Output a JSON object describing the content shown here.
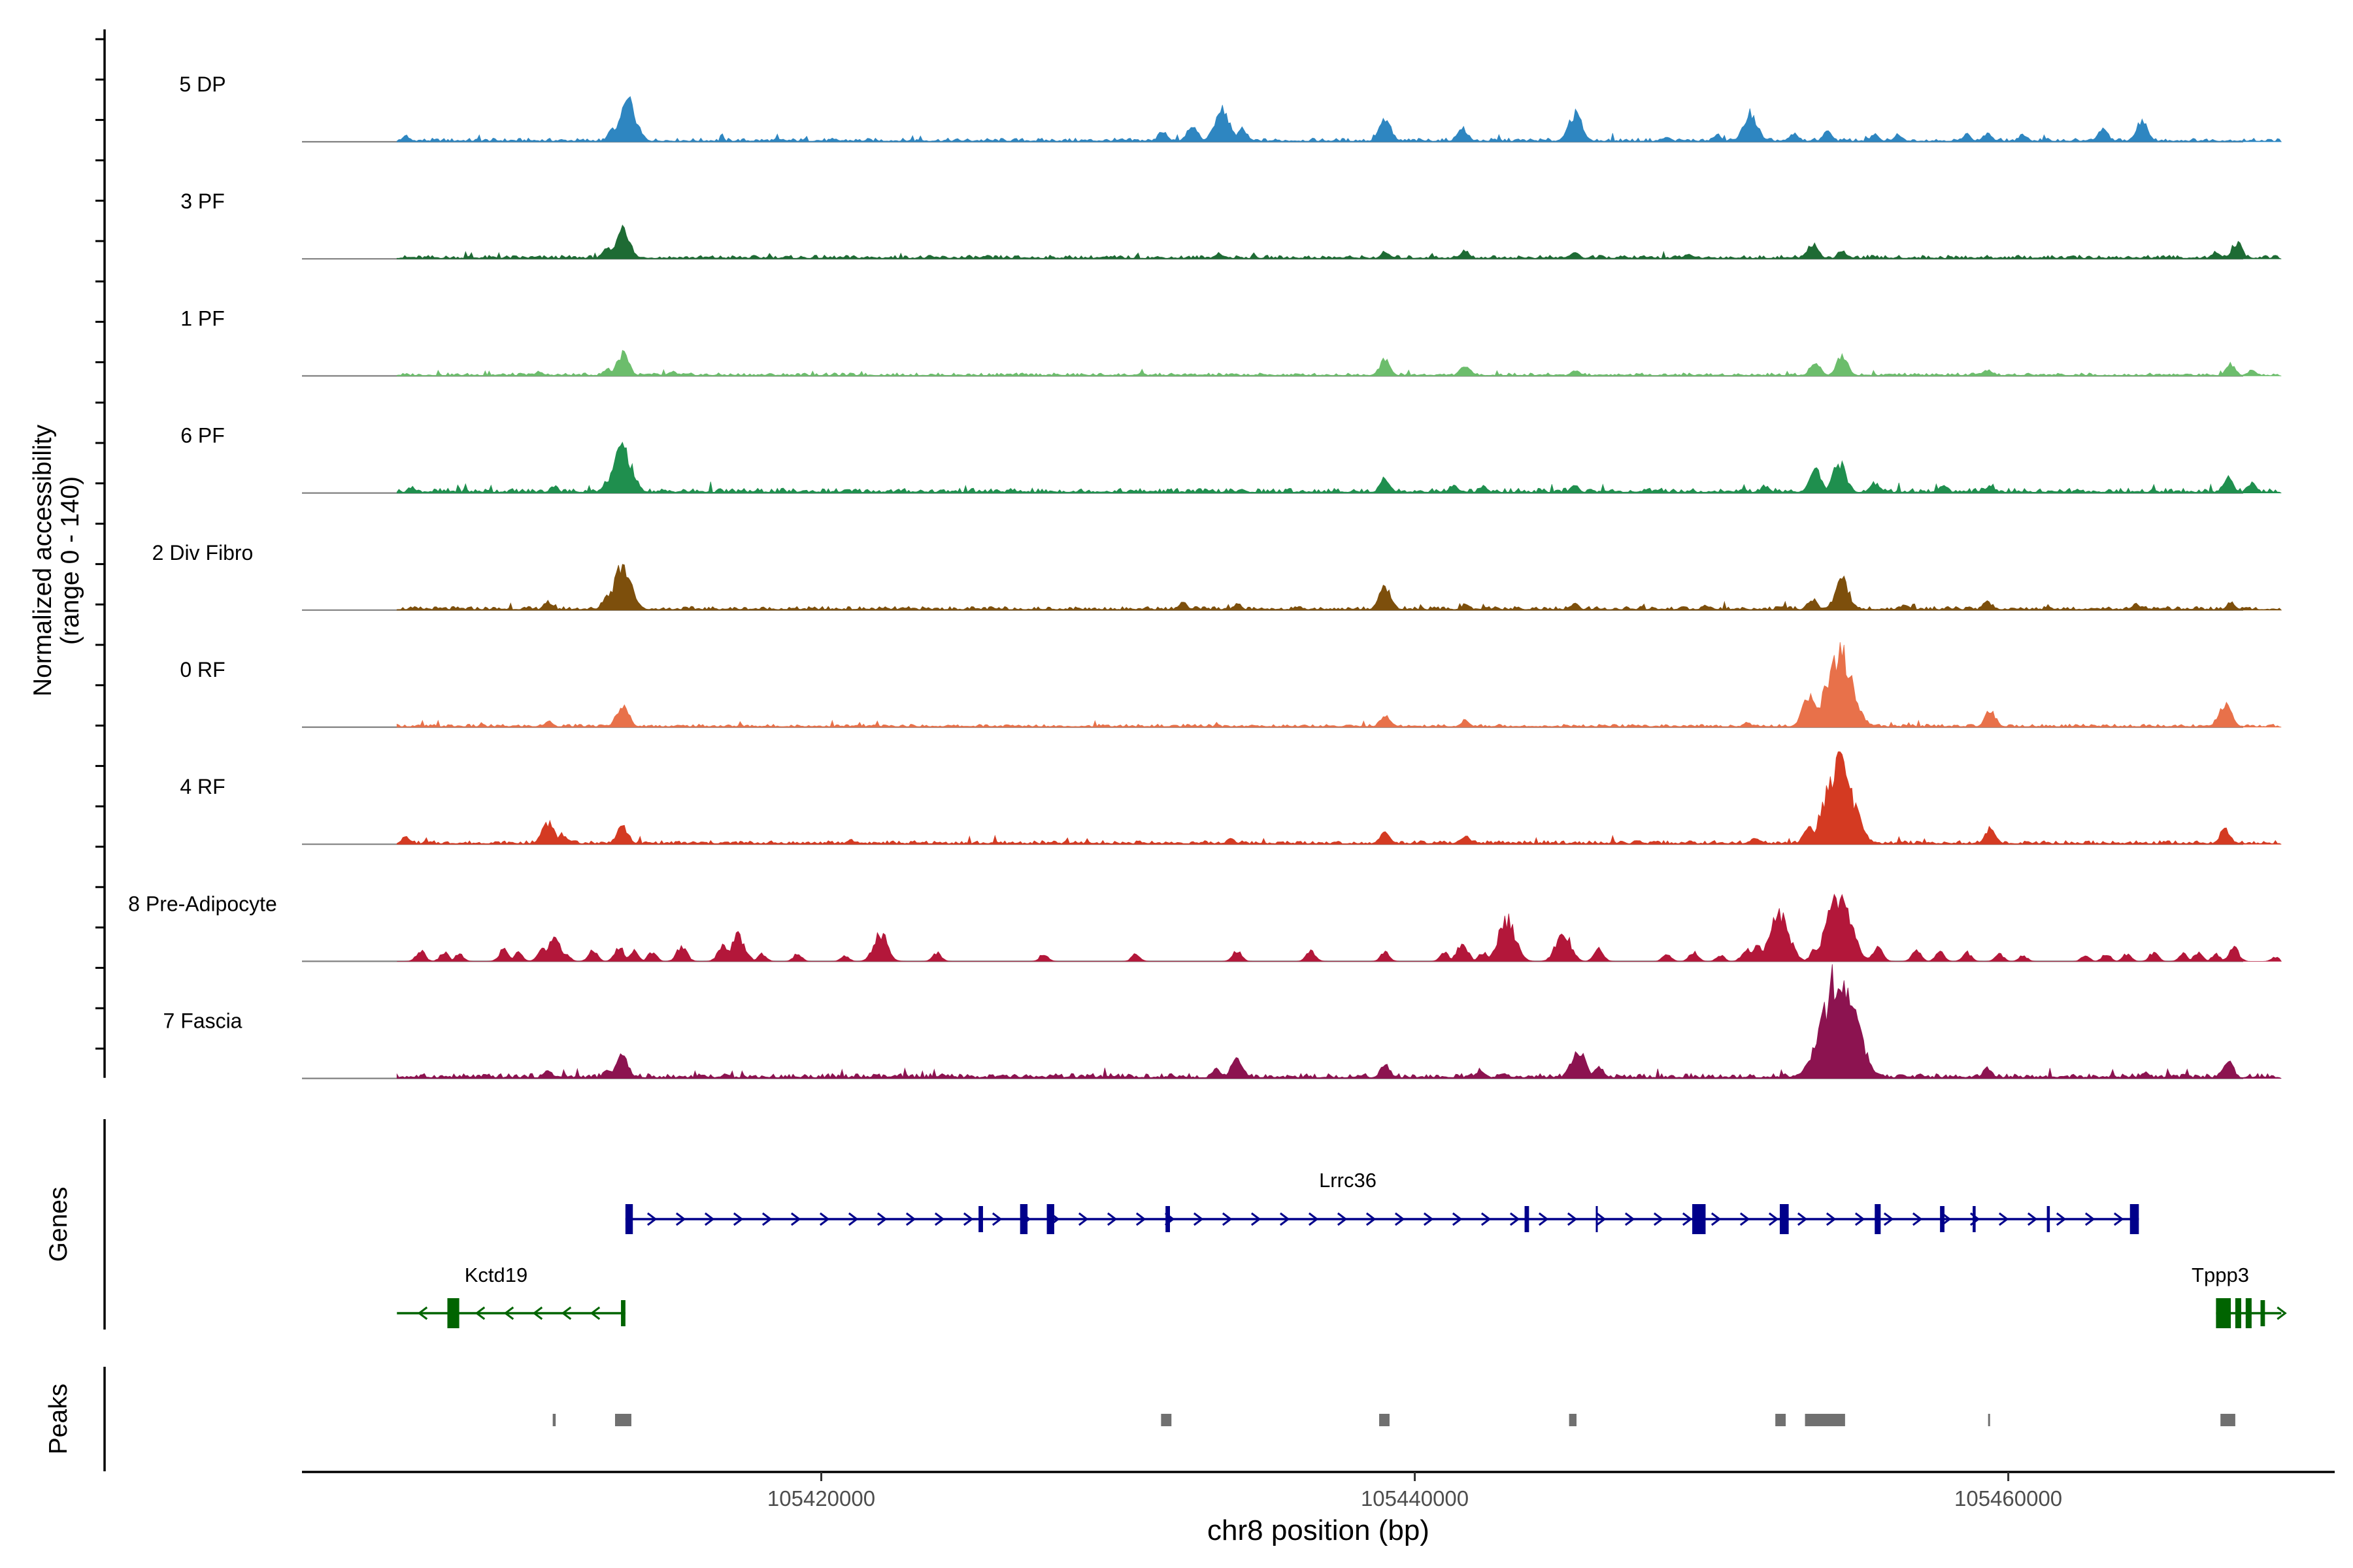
{
  "chart_data": {
    "type": "area",
    "title": "",
    "ylabel_line1": "Normalized accessibility",
    "ylabel_line2": "(range 0 - 140)",
    "ylim": [
      0,
      140
    ],
    "xlabel": "chr8 position (bp)",
    "xlim": [
      105402500,
      105471000
    ],
    "xticks": [
      105420000,
      105440000,
      105460000
    ],
    "xtick_labels": [
      "105420000",
      "105440000",
      "105460000"
    ],
    "region_start": 105405700,
    "region_end": 105469200,
    "panel_titles": {
      "genes": "Genes",
      "peaks": "Peaks"
    },
    "tracks": [
      {
        "name": "5 DP",
        "color": "#2e86c1",
        "baseline": 3.0,
        "peaks": [
          [
            105406000,
            8
          ],
          [
            105413500,
            52
          ],
          [
            105413000,
            18
          ],
          [
            105431500,
            14
          ],
          [
            105432500,
            22
          ],
          [
            105433500,
            45
          ],
          [
            105434200,
            18
          ],
          [
            105439000,
            30
          ],
          [
            105441600,
            20
          ],
          [
            105445400,
            38
          ],
          [
            105448500,
            8
          ],
          [
            105450200,
            10
          ],
          [
            105451300,
            40
          ],
          [
            105452800,
            12
          ],
          [
            105453900,
            14
          ],
          [
            105455500,
            10
          ],
          [
            105456300,
            10
          ],
          [
            105458600,
            10
          ],
          [
            105459300,
            12
          ],
          [
            105460500,
            10
          ],
          [
            105463200,
            18
          ],
          [
            105464500,
            28
          ]
        ]
      },
      {
        "name": "3 PF",
        "color": "#1e6b34",
        "baseline": 3.0,
        "peaks": [
          [
            105413300,
            40
          ],
          [
            105412800,
            15
          ],
          [
            105433400,
            8
          ],
          [
            105439000,
            10
          ],
          [
            105441700,
            12
          ],
          [
            105445400,
            10
          ],
          [
            105449200,
            6
          ],
          [
            105453400,
            22
          ],
          [
            105454400,
            12
          ],
          [
            105467700,
            22
          ],
          [
            105467000,
            10
          ]
        ]
      },
      {
        "name": "1 PF",
        "color": "#6cbd6c",
        "baseline": 2.5,
        "peaks": [
          [
            105413300,
            30
          ],
          [
            105412800,
            10
          ],
          [
            105415000,
            6
          ],
          [
            105410500,
            6
          ],
          [
            105439000,
            22
          ],
          [
            105441700,
            16
          ],
          [
            105445400,
            8
          ],
          [
            105453500,
            20
          ],
          [
            105454400,
            26
          ],
          [
            105459300,
            8
          ],
          [
            105467500,
            16
          ],
          [
            105468200,
            8
          ]
        ]
      },
      {
        "name": "6 PF",
        "color": "#1f8f4e",
        "baseline": 4.0,
        "peaks": [
          [
            105413300,
            62
          ],
          [
            105412800,
            18
          ],
          [
            105411000,
            10
          ],
          [
            105406200,
            8
          ],
          [
            105439000,
            20
          ],
          [
            105441300,
            12
          ],
          [
            105442300,
            10
          ],
          [
            105445400,
            10
          ],
          [
            105451800,
            10
          ],
          [
            105453500,
            30
          ],
          [
            105454300,
            40
          ],
          [
            105455500,
            14
          ],
          [
            105457800,
            12
          ],
          [
            105459400,
            10
          ],
          [
            105467400,
            20
          ],
          [
            105468200,
            14
          ]
        ]
      },
      {
        "name": "2 Div Fibro",
        "color": "#7d4f0c",
        "baseline": 3.0,
        "peaks": [
          [
            105413300,
            58
          ],
          [
            105412800,
            20
          ],
          [
            105410800,
            12
          ],
          [
            105432200,
            10
          ],
          [
            105434000,
            8
          ],
          [
            105439000,
            30
          ],
          [
            105441700,
            8
          ],
          [
            105445400,
            8
          ],
          [
            105449800,
            6
          ],
          [
            105453400,
            16
          ],
          [
            105454400,
            40
          ],
          [
            105456500,
            8
          ],
          [
            105459300,
            12
          ],
          [
            105464300,
            8
          ],
          [
            105467500,
            10
          ]
        ]
      },
      {
        "name": "0 RF",
        "color": "#e8714a",
        "baseline": 2.5,
        "peaks": [
          [
            105413300,
            30
          ],
          [
            105410800,
            8
          ],
          [
            105439000,
            18
          ],
          [
            105441700,
            10
          ],
          [
            105453300,
            40
          ],
          [
            105454300,
            100
          ],
          [
            105459400,
            22
          ],
          [
            105467300,
            32
          ],
          [
            105451200,
            6
          ]
        ]
      },
      {
        "name": "4 RF",
        "color": "#d43a22",
        "baseline": 3.0,
        "peaks": [
          [
            105410800,
            30
          ],
          [
            105411300,
            14
          ],
          [
            105413300,
            26
          ],
          [
            105406000,
            10
          ],
          [
            105421000,
            6
          ],
          [
            105433800,
            8
          ],
          [
            105439000,
            18
          ],
          [
            105441700,
            12
          ],
          [
            105451500,
            10
          ],
          [
            105453300,
            26
          ],
          [
            105454300,
            110
          ],
          [
            105459400,
            22
          ],
          [
            105467300,
            20
          ]
        ]
      },
      {
        "name": "8 Pre-Adipocyte",
        "color": "#b3173a",
        "baseline": 0.0,
        "peaks": [
          [
            105406500,
            14
          ],
          [
            105407300,
            12
          ],
          [
            105407800,
            10
          ],
          [
            105409300,
            16
          ],
          [
            105409800,
            12
          ],
          [
            105410600,
            18
          ],
          [
            105411000,
            30
          ],
          [
            105411400,
            10
          ],
          [
            105412300,
            14
          ],
          [
            105413200,
            18
          ],
          [
            105413700,
            14
          ],
          [
            105414300,
            12
          ],
          [
            105415300,
            20
          ],
          [
            105416700,
            22
          ],
          [
            105417200,
            36
          ],
          [
            105418000,
            10
          ],
          [
            105419200,
            10
          ],
          [
            105420800,
            8
          ],
          [
            105422000,
            38
          ],
          [
            105423900,
            12
          ],
          [
            105427500,
            10
          ],
          [
            105430600,
            10
          ],
          [
            105434000,
            14
          ],
          [
            105436500,
            14
          ],
          [
            105439000,
            12
          ],
          [
            105441000,
            12
          ],
          [
            105441600,
            24
          ],
          [
            105442300,
            12
          ],
          [
            105443100,
            55
          ],
          [
            105445000,
            42
          ],
          [
            105446200,
            16
          ],
          [
            105448500,
            10
          ],
          [
            105449400,
            12
          ],
          [
            105450300,
            8
          ],
          [
            105451200,
            18
          ],
          [
            105452300,
            64
          ],
          [
            105451600,
            22
          ],
          [
            105453500,
            16
          ],
          [
            105454300,
            90
          ],
          [
            105455600,
            18
          ],
          [
            105456900,
            14
          ],
          [
            105457700,
            12
          ],
          [
            105458600,
            12
          ],
          [
            105459700,
            10
          ],
          [
            105460500,
            8
          ],
          [
            105462600,
            8
          ],
          [
            105463300,
            10
          ],
          [
            105464000,
            10
          ],
          [
            105464900,
            12
          ],
          [
            105465900,
            10
          ],
          [
            105466400,
            12
          ],
          [
            105467000,
            10
          ],
          [
            105467600,
            18
          ],
          [
            105469000,
            6
          ]
        ]
      },
      {
        "name": "7 Fascia",
        "color": "#8c1350",
        "baseline": 4.0,
        "peaks": [
          [
            105413300,
            30
          ],
          [
            105412800,
            14
          ],
          [
            105410800,
            10
          ],
          [
            105434000,
            28
          ],
          [
            105433300,
            12
          ],
          [
            105439000,
            18
          ],
          [
            105442200,
            12
          ],
          [
            105443000,
            8
          ],
          [
            105445500,
            40
          ],
          [
            105446200,
            16
          ],
          [
            105453300,
            22
          ],
          [
            105454300,
            140
          ],
          [
            105459300,
            14
          ],
          [
            105467400,
            24
          ],
          [
            105464600,
            8
          ],
          [
            105416000,
            6
          ]
        ]
      }
    ],
    "genes": [
      {
        "name": "Lrrc36",
        "color": "#00008b",
        "strand": "+",
        "start": 105413400,
        "end": 105464400,
        "exons": [
          [
            105413400,
            105413650
          ],
          [
            105425300,
            105425450
          ],
          [
            105426700,
            105426950
          ],
          [
            105427600,
            105427850
          ],
          [
            105431600,
            105431750
          ],
          [
            105443700,
            105443850
          ],
          [
            105446100,
            105446160
          ],
          [
            105449350,
            105449800
          ],
          [
            105452300,
            105452600
          ],
          [
            105455500,
            105455700
          ],
          [
            105457700,
            105457850
          ],
          [
            105458800,
            105458900
          ],
          [
            105461300,
            105461400
          ],
          [
            105464100,
            105464400
          ]
        ]
      },
      {
        "name": "Kctd19",
        "color": "#006400",
        "strand": "-",
        "start": 105405700,
        "end": 105413400,
        "exons": [
          [
            105407400,
            105407800
          ],
          [
            105413250,
            105413400
          ]
        ]
      },
      {
        "name": "Tppp3",
        "color": "#006400",
        "strand": "+",
        "start": 105467000,
        "end": 105469200,
        "exons": [
          [
            105467000,
            105467500
          ],
          [
            105467650,
            105467850
          ],
          [
            105468000,
            105468200
          ],
          [
            105468500,
            105468650
          ]
        ]
      }
    ],
    "peak_regions": [
      [
        105410950,
        105411050
      ],
      [
        105413050,
        105413600
      ],
      [
        105431450,
        105431800
      ],
      [
        105438800,
        105439150
      ],
      [
        105445200,
        105445450
      ],
      [
        105452150,
        105452500
      ],
      [
        105453150,
        105454500
      ],
      [
        105459320,
        105459380
      ],
      [
        105467150,
        105467650
      ]
    ]
  }
}
